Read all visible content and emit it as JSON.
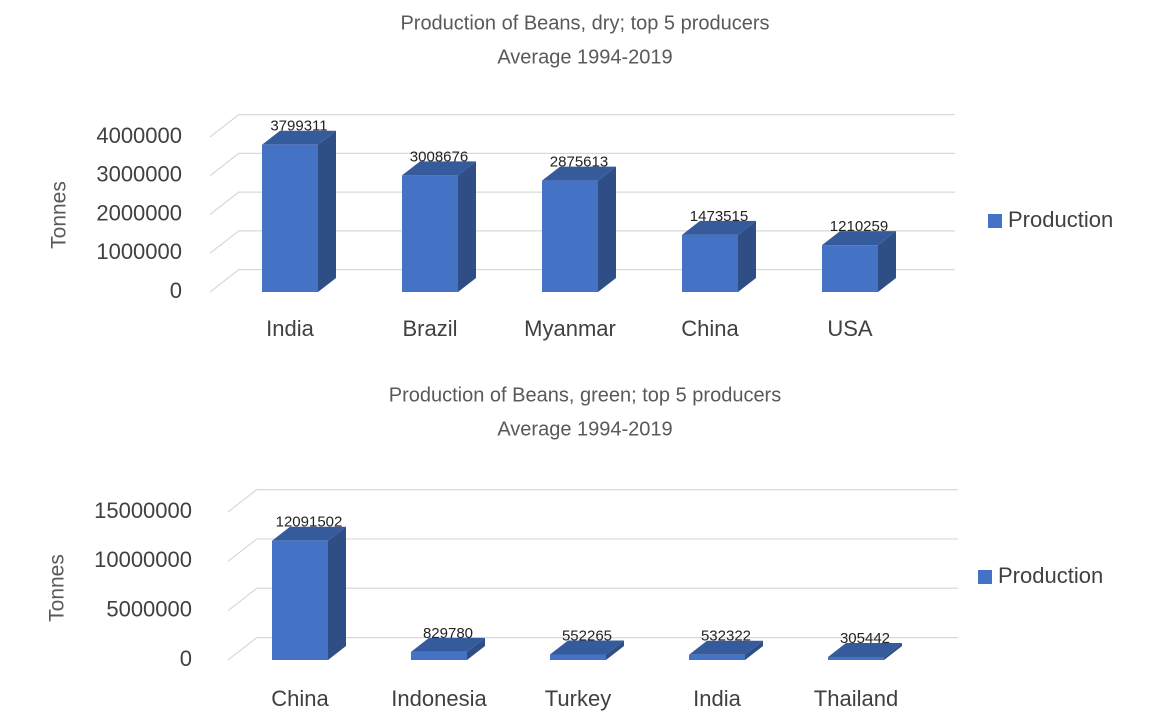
{
  "chart_data": [
    {
      "type": "bar3d",
      "title": "Production of Beans, dry; top 5 producers",
      "subtitle": "Average 1994-2019",
      "y_label": "Tonnes",
      "categories": [
        "India",
        "Brazil",
        "Myanmar",
        "China",
        "USA"
      ],
      "series": [
        {
          "name": "Production",
          "color": "#4472c4",
          "values": [
            3799311,
            3008676,
            2875613,
            1473515,
            1210259
          ]
        }
      ],
      "ylim": [
        0,
        4000000
      ],
      "yticks": [
        0,
        1000000,
        2000000,
        3000000,
        4000000
      ],
      "grid": true,
      "legend": "right"
    },
    {
      "type": "bar3d",
      "title": "Production of Beans, green; top 5 producers",
      "subtitle": "Average 1994-2019",
      "y_label": "Tonnes",
      "categories": [
        "China",
        "Indonesia",
        "Turkey",
        "India",
        "Thailand"
      ],
      "series": [
        {
          "name": "Production",
          "color": "#4472c4",
          "values": [
            12091502,
            829780,
            552265,
            532322,
            305442
          ]
        }
      ],
      "ylim": [
        0,
        15000000
      ],
      "yticks": [
        0,
        5000000,
        10000000,
        15000000
      ],
      "grid": true,
      "legend": "right"
    }
  ]
}
